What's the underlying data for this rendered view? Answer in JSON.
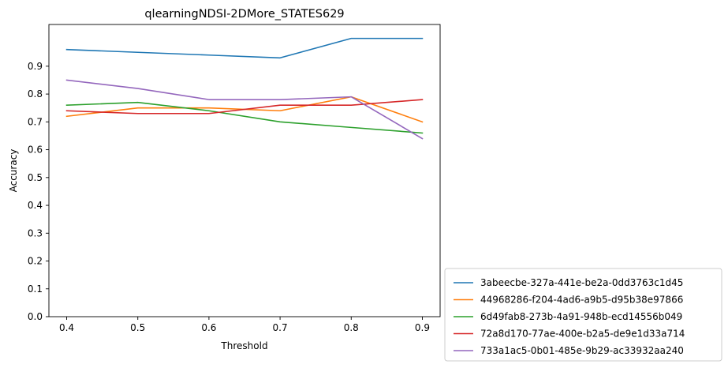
{
  "chart_data": {
    "type": "line",
    "title": "qlearningNDSI-2DMore_STATES629",
    "xlabel": "Threshold",
    "ylabel": "Accuracy",
    "x": [
      0.4,
      0.5,
      0.6,
      0.7,
      0.8,
      0.9
    ],
    "xticks": [
      "0.4",
      "0.5",
      "0.6",
      "0.7",
      "0.8",
      "0.9"
    ],
    "xlim": [
      0.375,
      0.925
    ],
    "ylim": [
      0.0,
      1.05
    ],
    "yticks": [
      "0.0",
      "0.1",
      "0.2",
      "0.3",
      "0.4",
      "0.5",
      "0.6",
      "0.7",
      "0.8",
      "0.9"
    ],
    "grid": false,
    "legend_position": "outside-lower-right",
    "series": [
      {
        "name": "3abeecbe-327a-441e-be2a-0dd3763c1d45",
        "color": "#1f77b4",
        "values": [
          0.96,
          0.95,
          0.94,
          0.93,
          1.0,
          1.0
        ]
      },
      {
        "name": "44968286-f204-4ad6-a9b5-d95b38e97866",
        "color": "#ff7f0e",
        "values": [
          0.72,
          0.75,
          0.75,
          0.74,
          0.79,
          0.7
        ]
      },
      {
        "name": "6d49fab8-273b-4a91-948b-ecd14556b049",
        "color": "#2ca02c",
        "values": [
          0.76,
          0.77,
          0.74,
          0.7,
          0.68,
          0.66
        ]
      },
      {
        "name": "72a8d170-77ae-400e-b2a5-de9e1d33a714",
        "color": "#d62728",
        "values": [
          0.74,
          0.73,
          0.73,
          0.76,
          0.76,
          0.78
        ]
      },
      {
        "name": "733a1ac5-0b01-485e-9b29-ac33932aa240",
        "color": "#9467bd",
        "values": [
          0.85,
          0.82,
          0.78,
          0.78,
          0.79,
          0.64
        ]
      }
    ]
  }
}
